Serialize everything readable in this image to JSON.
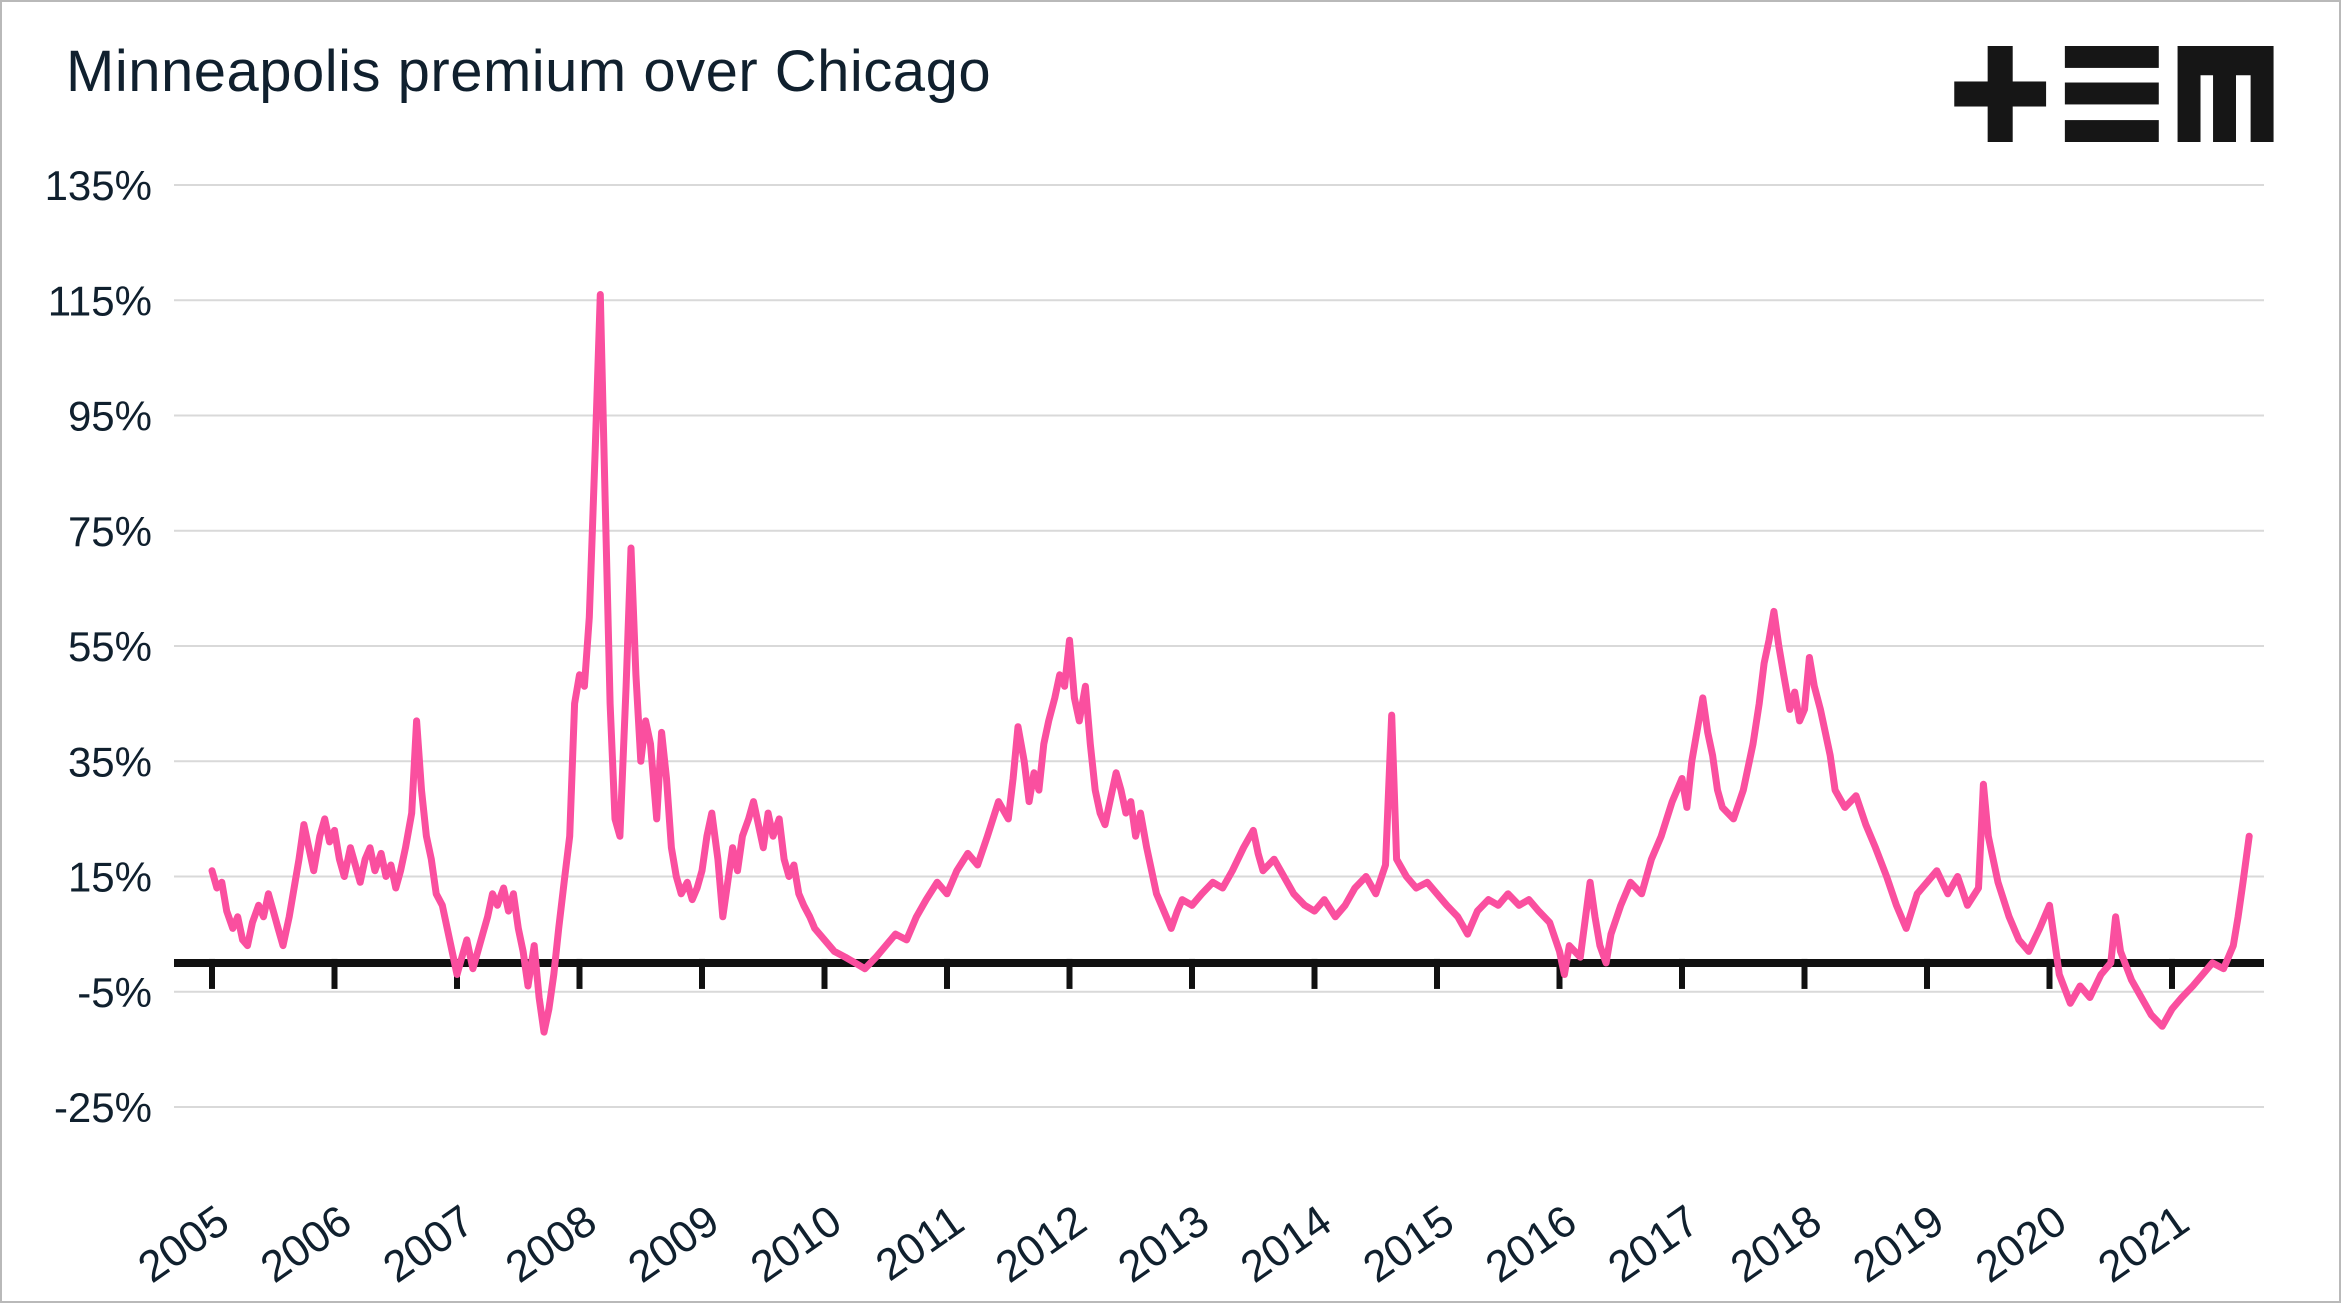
{
  "header": {
    "title": "Minneapolis premium over Chicago",
    "logo_name": "tem-logo"
  },
  "chart_data": {
    "type": "line",
    "title": "Minneapolis premium over Chicago",
    "xlabel": "",
    "ylabel": "",
    "legend": "none",
    "grid": "horizontal",
    "line_color": "#fa4f9f",
    "axis_color": "#111111",
    "grid_color": "#d9d9d9",
    "text_color": "#10202e",
    "y_tick_suffix": "%",
    "y_ticks": [
      -25,
      -5,
      15,
      35,
      55,
      75,
      95,
      115,
      135
    ],
    "x_ticks": [
      2005,
      2006,
      2007,
      2008,
      2009,
      2010,
      2011,
      2012,
      2013,
      2014,
      2015,
      2016,
      2017,
      2018,
      2019,
      2020,
      2021
    ],
    "ylim": [
      -25,
      135
    ],
    "xlim": [
      2005,
      2021.75
    ],
    "series": [
      {
        "name": "Minneapolis premium over Chicago",
        "points": [
          [
            2005.0,
            16
          ],
          [
            2005.04,
            13
          ],
          [
            2005.08,
            14
          ],
          [
            2005.12,
            9
          ],
          [
            2005.17,
            6
          ],
          [
            2005.21,
            8
          ],
          [
            2005.25,
            4
          ],
          [
            2005.29,
            3
          ],
          [
            2005.33,
            7
          ],
          [
            2005.38,
            10
          ],
          [
            2005.42,
            8
          ],
          [
            2005.46,
            12
          ],
          [
            2005.5,
            9
          ],
          [
            2005.54,
            6
          ],
          [
            2005.58,
            3
          ],
          [
            2005.63,
            8
          ],
          [
            2005.67,
            13
          ],
          [
            2005.71,
            18
          ],
          [
            2005.75,
            24
          ],
          [
            2005.79,
            20
          ],
          [
            2005.83,
            16
          ],
          [
            2005.88,
            22
          ],
          [
            2005.92,
            25
          ],
          [
            2005.96,
            21
          ],
          [
            2006.0,
            23
          ],
          [
            2006.04,
            18
          ],
          [
            2006.08,
            15
          ],
          [
            2006.13,
            20
          ],
          [
            2006.17,
            17
          ],
          [
            2006.21,
            14
          ],
          [
            2006.25,
            18
          ],
          [
            2006.29,
            20
          ],
          [
            2006.33,
            16
          ],
          [
            2006.38,
            19
          ],
          [
            2006.42,
            15
          ],
          [
            2006.46,
            17
          ],
          [
            2006.5,
            13
          ],
          [
            2006.54,
            16
          ],
          [
            2006.58,
            20
          ],
          [
            2006.63,
            26
          ],
          [
            2006.67,
            42
          ],
          [
            2006.71,
            30
          ],
          [
            2006.75,
            22
          ],
          [
            2006.79,
            18
          ],
          [
            2006.83,
            12
          ],
          [
            2006.88,
            10
          ],
          [
            2006.92,
            6
          ],
          [
            2006.96,
            2
          ],
          [
            2007.0,
            -2
          ],
          [
            2007.04,
            1
          ],
          [
            2007.08,
            4
          ],
          [
            2007.13,
            -1
          ],
          [
            2007.17,
            2
          ],
          [
            2007.21,
            5
          ],
          [
            2007.25,
            8
          ],
          [
            2007.29,
            12
          ],
          [
            2007.33,
            10
          ],
          [
            2007.38,
            13
          ],
          [
            2007.42,
            9
          ],
          [
            2007.46,
            12
          ],
          [
            2007.5,
            6
          ],
          [
            2007.54,
            2
          ],
          [
            2007.58,
            -4
          ],
          [
            2007.63,
            3
          ],
          [
            2007.67,
            -6
          ],
          [
            2007.71,
            -12
          ],
          [
            2007.75,
            -8
          ],
          [
            2007.79,
            -2
          ],
          [
            2007.83,
            6
          ],
          [
            2007.88,
            15
          ],
          [
            2007.92,
            22
          ],
          [
            2007.96,
            45
          ],
          [
            2008.0,
            50
          ],
          [
            2008.04,
            48
          ],
          [
            2008.08,
            60
          ],
          [
            2008.13,
            90
          ],
          [
            2008.17,
            116
          ],
          [
            2008.21,
            80
          ],
          [
            2008.25,
            45
          ],
          [
            2008.29,
            25
          ],
          [
            2008.33,
            22
          ],
          [
            2008.38,
            48
          ],
          [
            2008.42,
            72
          ],
          [
            2008.46,
            50
          ],
          [
            2008.5,
            35
          ],
          [
            2008.54,
            42
          ],
          [
            2008.58,
            38
          ],
          [
            2008.63,
            25
          ],
          [
            2008.67,
            40
          ],
          [
            2008.71,
            32
          ],
          [
            2008.75,
            20
          ],
          [
            2008.79,
            15
          ],
          [
            2008.83,
            12
          ],
          [
            2008.88,
            14
          ],
          [
            2008.92,
            11
          ],
          [
            2008.96,
            13
          ],
          [
            2009.0,
            16
          ],
          [
            2009.04,
            22
          ],
          [
            2009.08,
            26
          ],
          [
            2009.13,
            18
          ],
          [
            2009.17,
            8
          ],
          [
            2009.21,
            14
          ],
          [
            2009.25,
            20
          ],
          [
            2009.29,
            16
          ],
          [
            2009.33,
            22
          ],
          [
            2009.38,
            25
          ],
          [
            2009.42,
            28
          ],
          [
            2009.46,
            24
          ],
          [
            2009.5,
            20
          ],
          [
            2009.54,
            26
          ],
          [
            2009.58,
            22
          ],
          [
            2009.63,
            25
          ],
          [
            2009.67,
            18
          ],
          [
            2009.71,
            15
          ],
          [
            2009.75,
            17
          ],
          [
            2009.79,
            12
          ],
          [
            2009.83,
            10
          ],
          [
            2009.88,
            8
          ],
          [
            2009.92,
            6
          ],
          [
            2009.96,
            5
          ],
          [
            2010.0,
            4
          ],
          [
            2010.08,
            2
          ],
          [
            2010.17,
            1
          ],
          [
            2010.25,
            0
          ],
          [
            2010.33,
            -1
          ],
          [
            2010.42,
            1
          ],
          [
            2010.5,
            3
          ],
          [
            2010.58,
            5
          ],
          [
            2010.67,
            4
          ],
          [
            2010.75,
            8
          ],
          [
            2010.83,
            11
          ],
          [
            2010.92,
            14
          ],
          [
            2011.0,
            12
          ],
          [
            2011.08,
            16
          ],
          [
            2011.17,
            19
          ],
          [
            2011.25,
            17
          ],
          [
            2011.33,
            22
          ],
          [
            2011.42,
            28
          ],
          [
            2011.5,
            25
          ],
          [
            2011.54,
            32
          ],
          [
            2011.58,
            41
          ],
          [
            2011.63,
            35
          ],
          [
            2011.67,
            28
          ],
          [
            2011.71,
            33
          ],
          [
            2011.75,
            30
          ],
          [
            2011.79,
            38
          ],
          [
            2011.83,
            42
          ],
          [
            2011.88,
            46
          ],
          [
            2011.92,
            50
          ],
          [
            2011.96,
            48
          ],
          [
            2012.0,
            56
          ],
          [
            2012.04,
            46
          ],
          [
            2012.08,
            42
          ],
          [
            2012.13,
            48
          ],
          [
            2012.17,
            38
          ],
          [
            2012.21,
            30
          ],
          [
            2012.25,
            26
          ],
          [
            2012.29,
            24
          ],
          [
            2012.33,
            28
          ],
          [
            2012.38,
            33
          ],
          [
            2012.42,
            30
          ],
          [
            2012.46,
            26
          ],
          [
            2012.5,
            28
          ],
          [
            2012.54,
            22
          ],
          [
            2012.58,
            26
          ],
          [
            2012.63,
            20
          ],
          [
            2012.67,
            16
          ],
          [
            2012.71,
            12
          ],
          [
            2012.75,
            10
          ],
          [
            2012.79,
            8
          ],
          [
            2012.83,
            6
          ],
          [
            2012.88,
            9
          ],
          [
            2012.92,
            11
          ],
          [
            2013.0,
            10
          ],
          [
            2013.08,
            12
          ],
          [
            2013.17,
            14
          ],
          [
            2013.25,
            13
          ],
          [
            2013.33,
            16
          ],
          [
            2013.42,
            20
          ],
          [
            2013.5,
            23
          ],
          [
            2013.54,
            19
          ],
          [
            2013.58,
            16
          ],
          [
            2013.67,
            18
          ],
          [
            2013.75,
            15
          ],
          [
            2013.83,
            12
          ],
          [
            2013.92,
            10
          ],
          [
            2014.0,
            9
          ],
          [
            2014.08,
            11
          ],
          [
            2014.17,
            8
          ],
          [
            2014.25,
            10
          ],
          [
            2014.33,
            13
          ],
          [
            2014.42,
            15
          ],
          [
            2014.5,
            12
          ],
          [
            2014.58,
            17
          ],
          [
            2014.63,
            43
          ],
          [
            2014.67,
            18
          ],
          [
            2014.75,
            15
          ],
          [
            2014.83,
            13
          ],
          [
            2014.92,
            14
          ],
          [
            2015.0,
            12
          ],
          [
            2015.08,
            10
          ],
          [
            2015.17,
            8
          ],
          [
            2015.25,
            5
          ],
          [
            2015.33,
            9
          ],
          [
            2015.42,
            11
          ],
          [
            2015.5,
            10
          ],
          [
            2015.58,
            12
          ],
          [
            2015.67,
            10
          ],
          [
            2015.75,
            11
          ],
          [
            2015.83,
            9
          ],
          [
            2015.92,
            7
          ],
          [
            2016.0,
            2
          ],
          [
            2016.04,
            -2
          ],
          [
            2016.08,
            3
          ],
          [
            2016.17,
            1
          ],
          [
            2016.25,
            14
          ],
          [
            2016.29,
            8
          ],
          [
            2016.33,
            3
          ],
          [
            2016.38,
            0
          ],
          [
            2016.42,
            5
          ],
          [
            2016.5,
            10
          ],
          [
            2016.58,
            14
          ],
          [
            2016.67,
            12
          ],
          [
            2016.75,
            18
          ],
          [
            2016.83,
            22
          ],
          [
            2016.92,
            28
          ],
          [
            2017.0,
            32
          ],
          [
            2017.04,
            27
          ],
          [
            2017.08,
            35
          ],
          [
            2017.17,
            46
          ],
          [
            2017.21,
            40
          ],
          [
            2017.25,
            36
          ],
          [
            2017.29,
            30
          ],
          [
            2017.33,
            27
          ],
          [
            2017.42,
            25
          ],
          [
            2017.5,
            30
          ],
          [
            2017.58,
            38
          ],
          [
            2017.63,
            45
          ],
          [
            2017.67,
            52
          ],
          [
            2017.71,
            56
          ],
          [
            2017.75,
            61
          ],
          [
            2017.79,
            55
          ],
          [
            2017.83,
            50
          ],
          [
            2017.88,
            44
          ],
          [
            2017.92,
            47
          ],
          [
            2017.96,
            42
          ],
          [
            2018.0,
            44
          ],
          [
            2018.04,
            53
          ],
          [
            2018.08,
            48
          ],
          [
            2018.13,
            44
          ],
          [
            2018.17,
            40
          ],
          [
            2018.21,
            36
          ],
          [
            2018.25,
            30
          ],
          [
            2018.33,
            27
          ],
          [
            2018.42,
            29
          ],
          [
            2018.5,
            24
          ],
          [
            2018.58,
            20
          ],
          [
            2018.67,
            15
          ],
          [
            2018.75,
            10
          ],
          [
            2018.83,
            6
          ],
          [
            2018.92,
            12
          ],
          [
            2019.0,
            14
          ],
          [
            2019.08,
            16
          ],
          [
            2019.17,
            12
          ],
          [
            2019.25,
            15
          ],
          [
            2019.33,
            10
          ],
          [
            2019.42,
            13
          ],
          [
            2019.46,
            31
          ],
          [
            2019.5,
            22
          ],
          [
            2019.58,
            14
          ],
          [
            2019.67,
            8
          ],
          [
            2019.75,
            4
          ],
          [
            2019.83,
            2
          ],
          [
            2019.92,
            6
          ],
          [
            2020.0,
            10
          ],
          [
            2020.04,
            4
          ],
          [
            2020.08,
            -2
          ],
          [
            2020.17,
            -7
          ],
          [
            2020.25,
            -4
          ],
          [
            2020.33,
            -6
          ],
          [
            2020.42,
            -2
          ],
          [
            2020.5,
            0
          ],
          [
            2020.54,
            8
          ],
          [
            2020.58,
            2
          ],
          [
            2020.67,
            -3
          ],
          [
            2020.75,
            -6
          ],
          [
            2020.83,
            -9
          ],
          [
            2020.92,
            -11
          ],
          [
            2021.0,
            -8
          ],
          [
            2021.08,
            -6
          ],
          [
            2021.17,
            -4
          ],
          [
            2021.25,
            -2
          ],
          [
            2021.33,
            0
          ],
          [
            2021.42,
            -1
          ],
          [
            2021.5,
            3
          ],
          [
            2021.54,
            8
          ],
          [
            2021.58,
            14
          ],
          [
            2021.63,
            22
          ]
        ]
      }
    ]
  }
}
